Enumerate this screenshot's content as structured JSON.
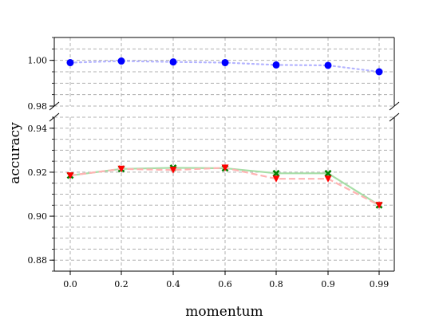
{
  "chart_data": {
    "type": "line",
    "xlabel": "momentum",
    "ylabel": "accuracy",
    "categories": [
      "0.0",
      "0.2",
      "0.4",
      "0.6",
      "0.8",
      "0.9",
      "0.99"
    ],
    "y_axis_break": true,
    "upper_panel": {
      "ylim": [
        0.98,
        1.01
      ],
      "ticks": [
        "0.98",
        "1.00"
      ]
    },
    "lower_panel": {
      "ylim": [
        0.875,
        0.945
      ],
      "ticks": [
        "0.88",
        "0.90",
        "0.92",
        "0.94"
      ]
    },
    "grid": true,
    "series": [
      {
        "panel": "upper",
        "color": "#0000ff",
        "line_color": "#b3b3ff",
        "line_style": "dotted",
        "marker": "circle",
        "values": [
          0.999,
          0.9997,
          0.9993,
          0.999,
          0.998,
          0.9978,
          0.995
        ]
      },
      {
        "panel": "lower",
        "color": "#008000",
        "line_color": "#a6dea6",
        "line_style": "solid",
        "marker": "x",
        "values": [
          0.9185,
          0.9215,
          0.922,
          0.9218,
          0.9195,
          0.9195,
          0.905
        ]
      },
      {
        "panel": "lower",
        "color": "#ff0000",
        "line_color": "#ffb3b3",
        "line_style": "dashed",
        "marker": "triangle-down",
        "values": [
          0.9185,
          0.9215,
          0.921,
          0.922,
          0.917,
          0.917,
          0.905
        ]
      }
    ]
  }
}
